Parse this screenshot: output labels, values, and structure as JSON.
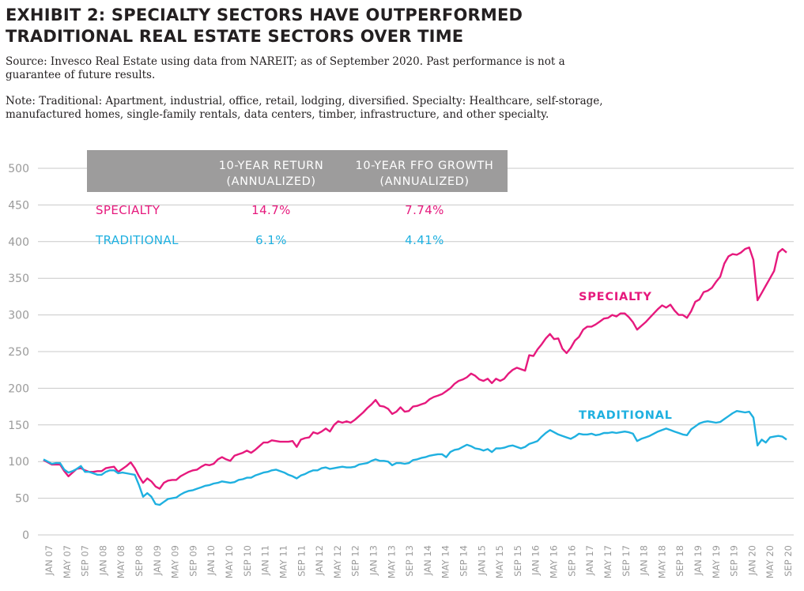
{
  "header": {
    "title_line1": "EXHIBIT 2: SPECIALTY SECTORS HAVE OUTPERFORMED",
    "title_line2": "TRADITIONAL REAL ESTATE SECTORS OVER TIME",
    "source_line1": "Source: Invesco Real Estate using data from NAREIT; as of September 2020. Past performance is not a",
    "source_line2": "guarantee of future results.",
    "note_line1": "Note: Traditional: Apartment, industrial, office, retail, lodging, diversified. Specialty: Healthcare, self-storage,",
    "note_line2": "manufactured homes, single-family rentals, data centers, timber, infrastructure, and other specialty."
  },
  "table": {
    "col1_line1": "10-YEAR RETURN",
    "col1_line2": "(ANNUALIZED)",
    "col2_line1": "10-YEAR FFO GROWTH",
    "col2_line2": "(ANNUALIZED)",
    "rows": [
      {
        "name": "SPECIALTY",
        "ret": "14.7%",
        "ffo": "7.74%",
        "color": "#e6197d"
      },
      {
        "name": "TRADITIONAL",
        "ret": "6.1%",
        "ffo": "4.41%",
        "color": "#1fb0e0"
      }
    ],
    "header_bg": "#9d9c9c"
  },
  "chart_data": {
    "type": "line",
    "ylim": [
      0,
      500
    ],
    "yticks": [
      0,
      50,
      100,
      150,
      200,
      250,
      300,
      350,
      400,
      450,
      500
    ],
    "grid": true,
    "x_tick_labels": [
      "JAN 07",
      "MAY 07",
      "SEP 07",
      "JAN 08",
      "MAY 08",
      "SEP 08",
      "JAN 09",
      "MAY 09",
      "SEP 09",
      "JAN 10",
      "MAY 10",
      "SEP 10",
      "JAN 11",
      "MAY 11",
      "SEP 11",
      "JAN 12",
      "MAY 12",
      "SEP 12",
      "JAN 13",
      "MAY 13",
      "SEP 13",
      "JAN 14",
      "MAY 14",
      "SEP 14",
      "JAN 15",
      "MAY 15",
      "SEP 15",
      "JAN 16",
      "MAY 16",
      "SEP 16",
      "JAN 17",
      "MAY 17",
      "SEP 17",
      "JAN 18",
      "MAY 18",
      "SEP 18",
      "JAN 19",
      "MAY 19",
      "SEP 19",
      "JAN 20",
      "MAY 20",
      "SEP 20"
    ],
    "x_start": "2007-01",
    "series": [
      {
        "name": "SPECIALTY",
        "color": "#e6197d",
        "values": [
          102,
          99,
          96,
          96,
          96,
          87,
          80,
          85,
          90,
          91,
          88,
          86,
          86,
          87,
          87,
          91,
          92,
          93,
          86,
          90,
          94,
          99,
          91,
          80,
          71,
          77,
          73,
          66,
          63,
          71,
          74,
          75,
          75,
          80,
          83,
          86,
          88,
          89,
          93,
          96,
          95,
          97,
          103,
          106,
          103,
          101,
          108,
          110,
          112,
          115,
          112,
          116,
          121,
          126,
          126,
          129,
          128,
          127,
          127,
          127,
          128,
          120,
          130,
          132,
          133,
          140,
          138,
          141,
          145,
          141,
          150,
          155,
          153,
          155,
          153,
          157,
          162,
          167,
          173,
          178,
          184,
          176,
          175,
          172,
          165,
          168,
          174,
          168,
          169,
          175,
          176,
          178,
          180,
          185,
          188,
          190,
          192,
          196,
          200,
          206,
          210,
          212,
          215,
          220,
          217,
          212,
          210,
          213,
          207,
          213,
          210,
          213,
          220,
          225,
          228,
          226,
          224,
          245,
          244,
          253,
          260,
          268,
          274,
          267,
          268,
          254,
          248,
          255,
          265,
          270,
          280,
          284,
          284,
          287,
          291,
          295,
          296,
          300,
          298,
          302,
          302,
          297,
          290,
          280,
          285,
          290,
          296,
          302,
          308,
          313,
          310,
          314,
          306,
          300,
          300,
          296,
          305,
          318,
          321,
          331,
          333,
          337,
          345,
          352,
          370,
          380,
          383,
          382,
          385,
          390,
          392,
          375,
          320,
          330,
          340,
          350,
          360,
          385,
          390,
          385
        ]
      },
      {
        "name": "TRADITIONAL",
        "color": "#1fb0e0",
        "values": [
          103,
          100,
          97,
          98,
          98,
          89,
          85,
          87,
          90,
          94,
          86,
          86,
          84,
          82,
          82,
          86,
          88,
          88,
          84,
          85,
          84,
          83,
          82,
          68,
          52,
          57,
          52,
          42,
          41,
          45,
          49,
          50,
          51,
          55,
          58,
          60,
          61,
          63,
          65,
          67,
          68,
          70,
          71,
          73,
          72,
          71,
          72,
          75,
          76,
          78,
          78,
          81,
          83,
          85,
          86,
          88,
          89,
          87,
          85,
          82,
          80,
          77,
          81,
          83,
          86,
          88,
          88,
          91,
          92,
          90,
          91,
          92,
          93,
          92,
          92,
          93,
          96,
          97,
          98,
          101,
          103,
          101,
          101,
          100,
          95,
          98,
          98,
          97,
          98,
          102,
          103,
          105,
          106,
          108,
          109,
          110,
          110,
          106,
          113,
          116,
          117,
          120,
          123,
          121,
          118,
          117,
          115,
          117,
          113,
          118,
          118,
          119,
          121,
          122,
          120,
          118,
          120,
          124,
          126,
          128,
          134,
          139,
          143,
          140,
          137,
          135,
          133,
          131,
          134,
          138,
          137,
          137,
          138,
          136,
          137,
          139,
          139,
          140,
          139,
          140,
          141,
          140,
          138,
          128,
          131,
          133,
          135,
          138,
          141,
          143,
          145,
          143,
          141,
          139,
          137,
          136,
          144,
          148,
          152,
          154,
          155,
          154,
          153,
          154,
          158,
          162,
          166,
          169,
          168,
          167,
          168,
          160,
          122,
          130,
          126,
          133,
          134,
          135,
          134,
          130
        ]
      }
    ]
  },
  "labels": {
    "specialty": "SPECIALTY",
    "traditional": "TRADITIONAL"
  }
}
